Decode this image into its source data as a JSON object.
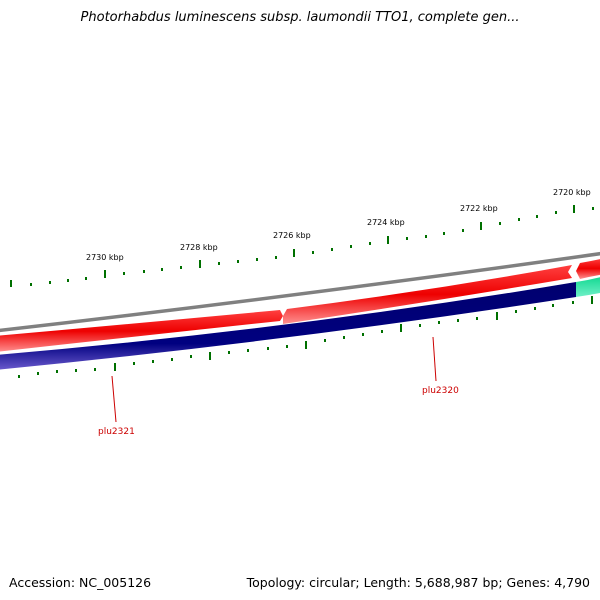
{
  "title": "Photorhabdus luminescens subsp. laumondii TTO1, complete gen...",
  "footer": {
    "accession": "Accession: NC_005126",
    "summary": "Topology: circular; Length: 5,688,987 bp; Genes: 4,790"
  },
  "ruler": {
    "labels": [
      "2730 kbp",
      "2728 kbp",
      "2726 kbp",
      "2724 kbp",
      "2722 kbp",
      "2720 kbp"
    ]
  },
  "genes": {
    "labels": [
      "plu2321",
      "plu2320"
    ]
  },
  "colors": {
    "backbone": "#808080",
    "forward_strand": "#ee0000",
    "reverse_strand": "#000080",
    "highlight_gene": "#20e8a8",
    "tick": "#007000",
    "gene_label": "#cc0000"
  }
}
